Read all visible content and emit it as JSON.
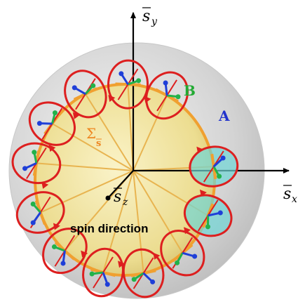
{
  "axes": {
    "sx": {
      "base": "s",
      "sub": "x"
    },
    "sy": {
      "base": "s",
      "sub": "y"
    },
    "sz": {
      "base": "s",
      "sub": "z"
    }
  },
  "labels": {
    "sigma_main": "Σ",
    "sigma_sub": "s",
    "a": "A",
    "b": "B",
    "spin_direction": "spin direction"
  },
  "colors": {
    "sphere": "#d9d9d9",
    "disk": "#f5e9a0",
    "orbit": "#f0a030",
    "ellipse": "#dd1f1f",
    "arrow_a": "#1f3fd8",
    "arrow_b": "#22b24a",
    "highlight": "#6fd6d6",
    "label_a": "#2233cc",
    "label_b": "#22aa33",
    "label_sigma": "#ee8822"
  },
  "icons": {
    "origin_dot": "black-dot-icon",
    "axis_arrow": "arrowhead-icon"
  }
}
